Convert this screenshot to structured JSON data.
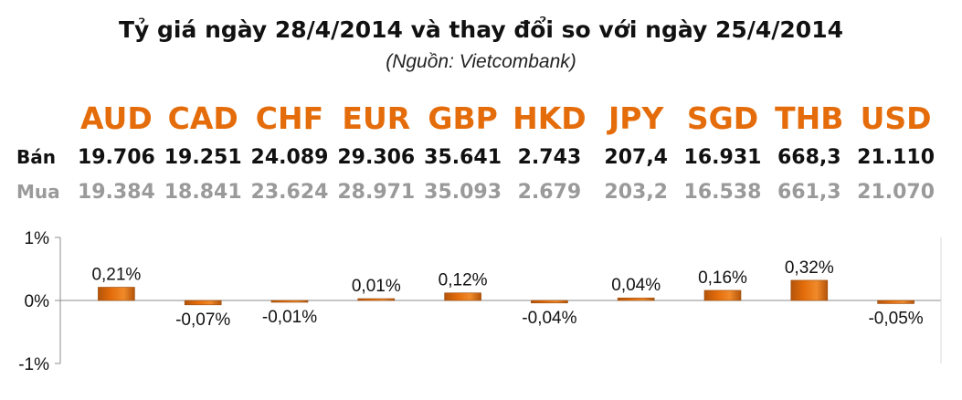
{
  "title": "Tỷ giá ngày 28/4/2014 và thay đổi so với ngày 25/4/2014",
  "source": "(Nguồn: Vietcombank)",
  "table": {
    "sell_label": "Bán",
    "buy_label": "Mua"
  },
  "chart_data": {
    "type": "bar",
    "categories": [
      "AUD",
      "CAD",
      "CHF",
      "EUR",
      "GBP",
      "HKD",
      "JPY",
      "SGD",
      "THB",
      "USD"
    ],
    "sell": [
      "19.706",
      "19.251",
      "24.089",
      "29.306",
      "35.641",
      "2.743",
      "207,4",
      "16.931",
      "668,3",
      "21.110"
    ],
    "buy": [
      "19.384",
      "18.841",
      "23.624",
      "28.971",
      "35.093",
      "2.679",
      "203,2",
      "16.538",
      "661,3",
      "21.070"
    ],
    "values": [
      0.21,
      -0.07,
      -0.01,
      0.01,
      0.12,
      -0.04,
      0.04,
      0.16,
      0.32,
      -0.05
    ],
    "data_labels": [
      "0,21%",
      "-0,07%",
      "-0,01%",
      "0,01%",
      "0,12%",
      "-0,04%",
      "0,04%",
      "0,16%",
      "0,32%",
      "-0,05%"
    ],
    "yticks": [
      "1%",
      "0%",
      "-1%"
    ],
    "ylim": [
      -1,
      1
    ],
    "bar_color": "#e46c0a",
    "grid": false
  }
}
